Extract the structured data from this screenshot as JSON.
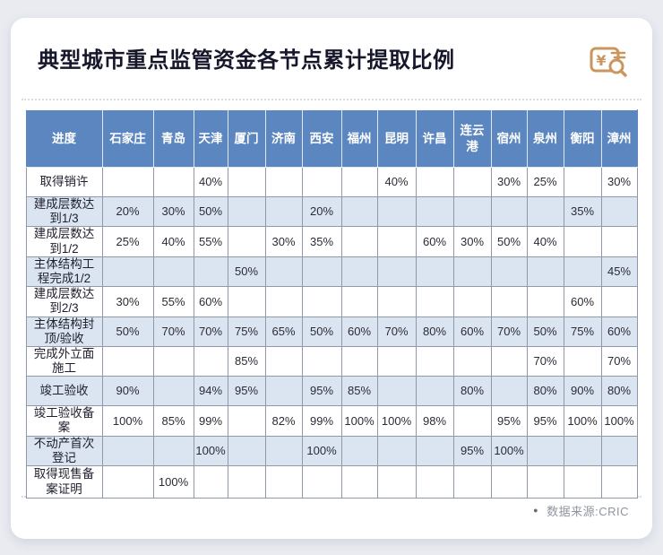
{
  "title": {
    "regular": "典型城市重点监管资金",
    "bold": "各节点累计提取比例"
  },
  "icon": {
    "name": "money-audit-icon",
    "color": "#c9965f",
    "glyph": "¥"
  },
  "footer": {
    "bullet": "●",
    "source": "数据来源:CRIC"
  },
  "colors": {
    "page_bg": "#e9ebf1",
    "card_bg": "#ffffff",
    "header_bg": "#5c86c0",
    "alt_row_bg": "#dbe5f1",
    "border": "#8f99a8"
  },
  "chart_data": {
    "type": "table",
    "title": "典型城市重点监管资金各节点累计提取比例",
    "columns": [
      "进度",
      "石家庄",
      "青岛",
      "天津",
      "厦门",
      "济南",
      "西安",
      "福州",
      "昆明",
      "许昌",
      "连云港",
      "宿州",
      "泉州",
      "衡阳",
      "漳州"
    ],
    "rows": [
      [
        "取得销许",
        "",
        "",
        "40%",
        "",
        "",
        "",
        "",
        "40%",
        "",
        "",
        "30%",
        "25%",
        "",
        "30%"
      ],
      [
        "建成层数达到1/3",
        "20%",
        "30%",
        "50%",
        "",
        "",
        "20%",
        "",
        "",
        "",
        "",
        "",
        "",
        "35%",
        ""
      ],
      [
        "建成层数达到1/2",
        "25%",
        "40%",
        "55%",
        "",
        "30%",
        "35%",
        "",
        "",
        "60%",
        "30%",
        "50%",
        "40%",
        "",
        ""
      ],
      [
        "主体结构工程完成1/2",
        "",
        "",
        "",
        "50%",
        "",
        "",
        "",
        "",
        "",
        "",
        "",
        "",
        "",
        "45%"
      ],
      [
        "建成层数达到2/3",
        "30%",
        "55%",
        "60%",
        "",
        "",
        "",
        "",
        "",
        "",
        "",
        "",
        "",
        "60%",
        ""
      ],
      [
        "主体结构封顶/验收",
        "50%",
        "70%",
        "70%",
        "75%",
        "65%",
        "50%",
        "60%",
        "70%",
        "80%",
        "60%",
        "70%",
        "50%",
        "75%",
        "60%"
      ],
      [
        "完成外立面施工",
        "",
        "",
        "",
        "85%",
        "",
        "",
        "",
        "",
        "",
        "",
        "",
        "70%",
        "",
        "70%"
      ],
      [
        "竣工验收",
        "90%",
        "",
        "94%",
        "95%",
        "",
        "95%",
        "85%",
        "",
        "",
        "80%",
        "",
        "80%",
        "90%",
        "80%"
      ],
      [
        "竣工验收备案",
        "100%",
        "85%",
        "99%",
        "",
        "82%",
        "99%",
        "100%",
        "100%",
        "98%",
        "",
        "95%",
        "95%",
        "100%",
        "100%"
      ],
      [
        "不动产首次登记",
        "",
        "",
        "100%",
        "",
        "",
        "100%",
        "",
        "",
        "",
        "95%",
        "100%",
        "",
        "",
        ""
      ],
      [
        "取得现售备案证明",
        "",
        "100%",
        "",
        "",
        "",
        "",
        "",
        "",
        "",
        "",
        "",
        "",
        "",
        ""
      ]
    ],
    "source": "数据来源:CRIC",
    "layout": {
      "alternating_rows": true,
      "grid": "on"
    }
  }
}
